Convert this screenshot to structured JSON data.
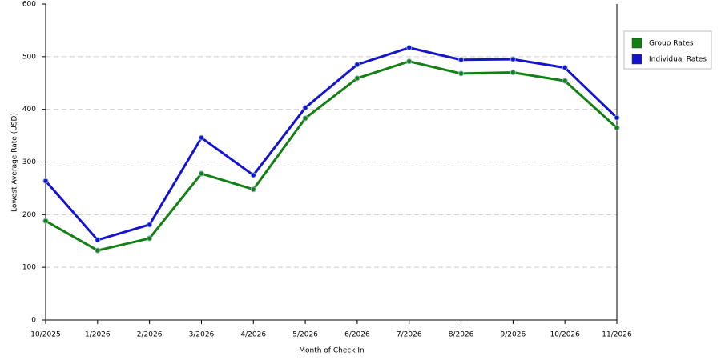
{
  "chart_data": {
    "type": "line",
    "x_label": "Month of Check In",
    "y_label": "Lowest Average Rate (USD)",
    "categories": [
      "10/2025",
      "1/2026",
      "2/2026",
      "3/2026",
      "4/2026",
      "5/2026",
      "6/2026",
      "7/2026",
      "8/2026",
      "9/2026",
      "10/2026",
      "11/2026"
    ],
    "series": [
      {
        "name": "Group Rates",
        "color": "#138013",
        "values": [
          188,
          132,
          155,
          278,
          248,
          383,
          459,
          491,
          468,
          470,
          454,
          365
        ]
      },
      {
        "name": "Individual Rates",
        "color": "#1414d0",
        "values": [
          264,
          152,
          181,
          346,
          275,
          403,
          485,
          517,
          494,
          495,
          479,
          384
        ]
      }
    ],
    "ylim": [
      0,
      600
    ],
    "yticks": [
      0,
      100,
      200,
      300,
      400,
      500,
      600
    ],
    "grid": true,
    "legend": "right"
  }
}
